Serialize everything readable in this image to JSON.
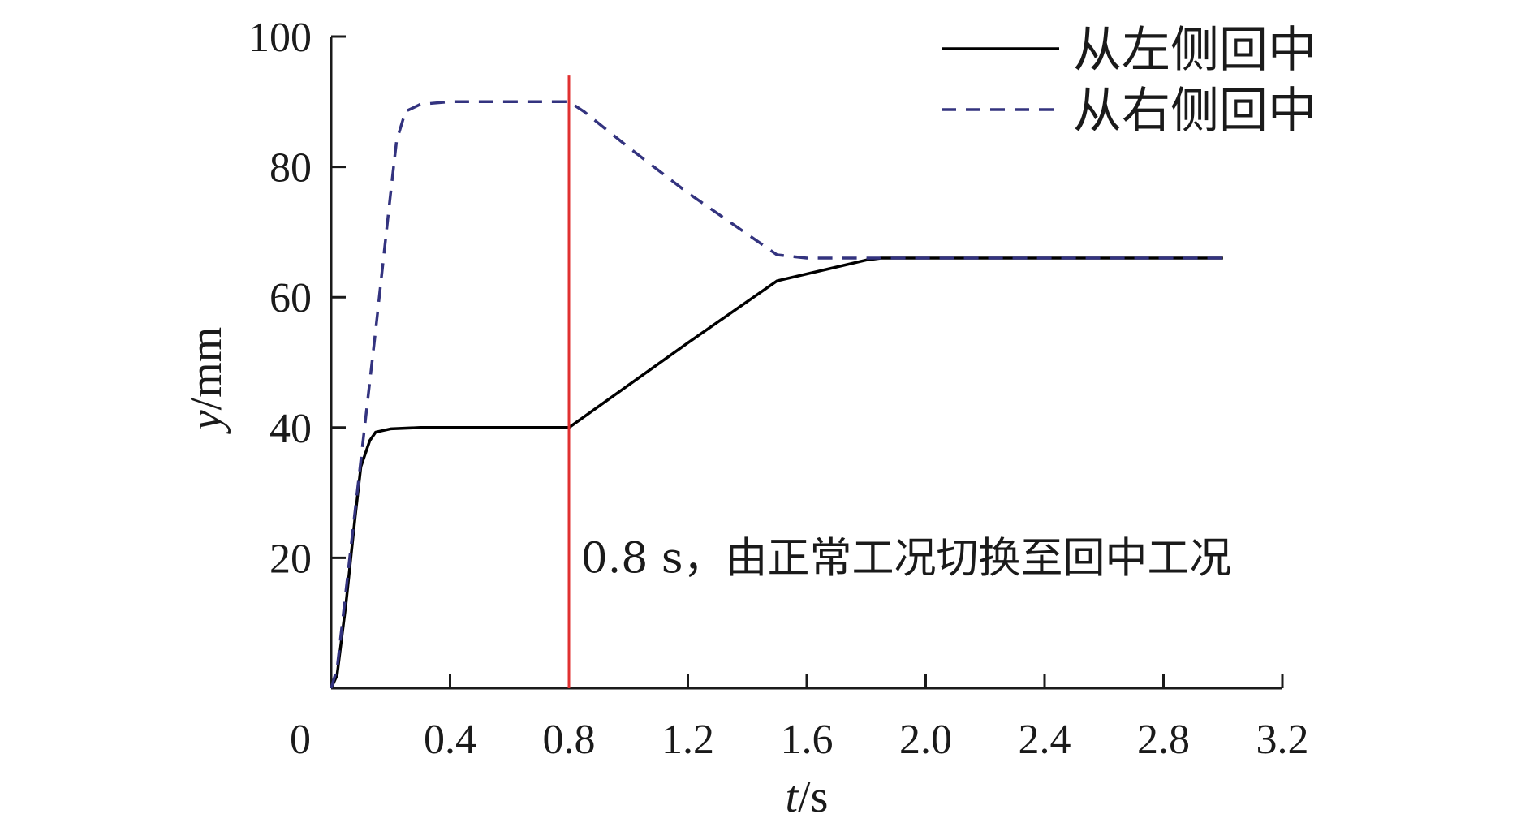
{
  "chart_data": {
    "type": "line",
    "xlabel": {
      "italic": "t",
      "rest": "/s"
    },
    "ylabel": {
      "italic": "y",
      "rest": "/mm"
    },
    "xlim": [
      0,
      3.2
    ],
    "ylim": [
      0,
      100
    ],
    "xticks": [
      0,
      0.4,
      0.8,
      1.2,
      1.6,
      2.0,
      2.4,
      2.8,
      3.2
    ],
    "xtick_labels": [
      "0",
      "0.4",
      "0.8",
      "1.2",
      "1.6",
      "2.0",
      "2.4",
      "2.8",
      "3.2"
    ],
    "yticks": [
      20,
      40,
      60,
      80,
      100
    ],
    "ytick_labels": [
      "20",
      "40",
      "60",
      "80",
      "100"
    ],
    "grid": false,
    "legend_position": "top-right",
    "series": [
      {
        "name": "从左侧回中",
        "color": "#000000",
        "dash": "solid",
        "x": [
          0,
          0.02,
          0.05,
          0.08,
          0.1,
          0.13,
          0.15,
          0.2,
          0.3,
          0.5,
          0.8,
          1.0,
          1.2,
          1.5,
          1.8,
          1.85,
          2.0,
          2.5,
          3.0
        ],
        "y": [
          0,
          2,
          13,
          26,
          34,
          38,
          39.3,
          39.8,
          40,
          40,
          40,
          46.5,
          53,
          62.5,
          65.7,
          66,
          66,
          66,
          66
        ]
      },
      {
        "name": "从右侧回中",
        "color": "#33337f",
        "dash": "dashed",
        "x": [
          0,
          0.02,
          0.05,
          0.1,
          0.15,
          0.2,
          0.22,
          0.25,
          0.3,
          0.4,
          0.6,
          0.8,
          0.85,
          1.0,
          1.2,
          1.5,
          1.6,
          1.8,
          2.0,
          3.0
        ],
        "y": [
          0,
          3,
          15,
          35,
          55,
          76,
          84,
          88.5,
          89.6,
          90,
          90,
          90,
          88.5,
          83,
          76,
          66.5,
          66,
          66,
          66,
          66
        ]
      }
    ],
    "annotations": [
      {
        "type": "vline",
        "x": 0.8,
        "y_top": 94,
        "color": "#e03030"
      },
      {
        "type": "text",
        "text": "0.8 s，由正常工况切换至回中工况",
        "x": 0.84,
        "y": 20
      }
    ]
  }
}
